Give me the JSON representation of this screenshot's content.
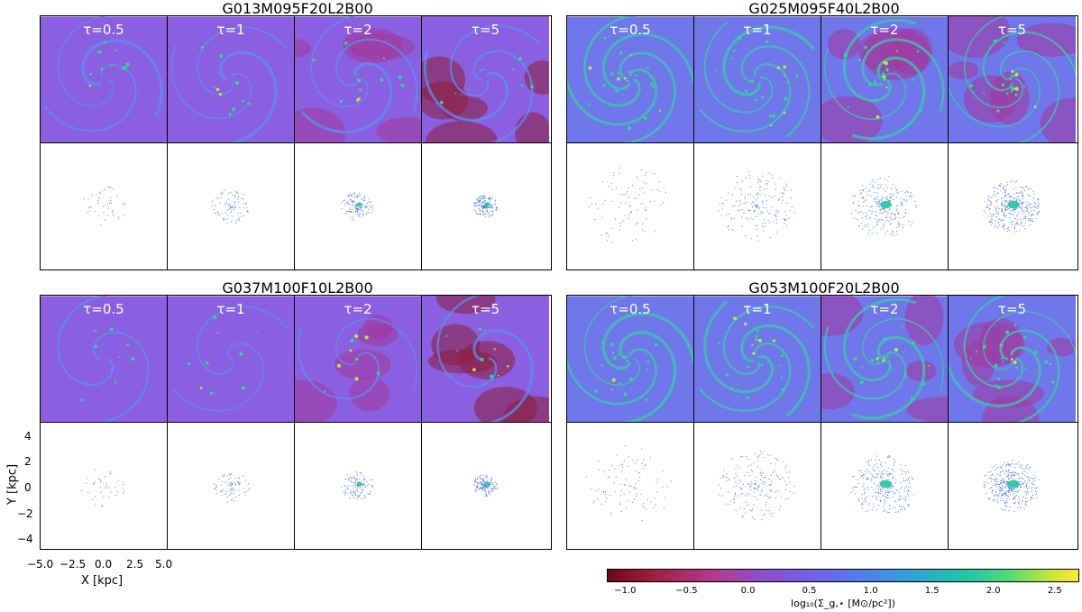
{
  "groups": [
    {
      "title": "G013M095F20L2B00",
      "palette": "purple",
      "dens": 0.15
    },
    {
      "title": "G025M095F40L2B00",
      "palette": "cyan",
      "dens": 0.55
    },
    {
      "title": "G037M100F10L2B00",
      "palette": "purple",
      "dens": 0.12
    },
    {
      "title": "G053M100F20L2B00",
      "palette": "cyan",
      "dens": 0.6
    }
  ],
  "tau_labels": [
    "τ=0.5",
    "τ=1",
    "τ=2",
    "τ=5"
  ],
  "axes": {
    "xlabel": "X [kpc]",
    "ylabel": "Y [kpc]",
    "xticks": [
      "−5.0",
      "−2.5",
      "0.0",
      "2.5",
      "5.0"
    ],
    "yticks": [
      "4",
      "2",
      "0",
      "−2",
      "−4"
    ]
  },
  "colorbar": {
    "label": "log₁₀(Σ_g,⋆ [M⊙/pc²])",
    "ticks": [
      "−1.0",
      "−0.5",
      "0.0",
      "0.5",
      "1.0",
      "1.5",
      "2.0",
      "2.5"
    ],
    "range": [
      -1.15,
      2.7
    ],
    "colors": [
      "#6a0a12",
      "#b33a8a",
      "#6b66e8",
      "#2fa7d0",
      "#56dc70",
      "#fbea30"
    ]
  }
}
